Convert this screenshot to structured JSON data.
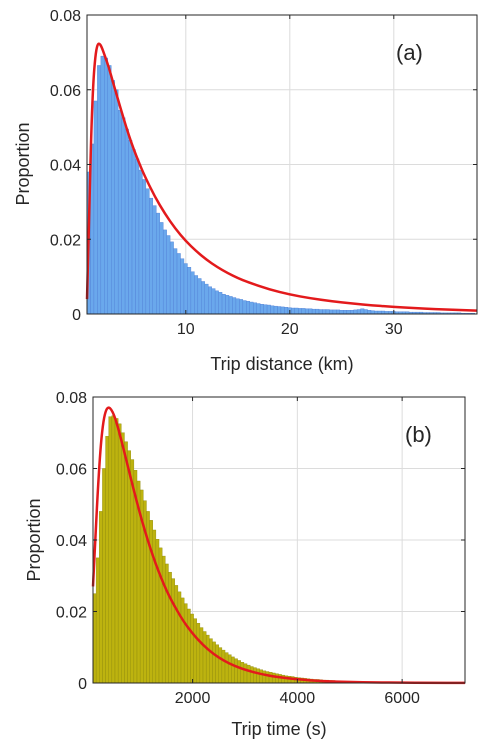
{
  "chart_data": [
    {
      "type": "bar",
      "panel_label": "(a)",
      "xlabel": "Trip distance (km)",
      "ylabel": "Proportion",
      "xlim": [
        0.5,
        38
      ],
      "ylim": [
        0,
        0.08
      ],
      "xticks": [
        10,
        20,
        30
      ],
      "xtick_labels": [
        "10",
        "20",
        "30"
      ],
      "yticks": [
        0,
        0.02,
        0.04,
        0.06,
        0.08
      ],
      "ytick_labels": [
        "0",
        "0.02",
        "0.04",
        "0.06",
        "0.08"
      ],
      "grid": true,
      "bar_color": "#6aa8ec",
      "bar_edge": "#4f7fd6",
      "curve_color": "#e31a1c",
      "bins_start": 0.5,
      "bin_width": 0.333,
      "histogram": [
        0.038,
        0.0455,
        0.057,
        0.0665,
        0.069,
        0.0685,
        0.0665,
        0.0625,
        0.06,
        0.0545,
        0.0525,
        0.0495,
        0.0465,
        0.044,
        0.0415,
        0.0385,
        0.036,
        0.0335,
        0.031,
        0.029,
        0.027,
        0.0245,
        0.0225,
        0.021,
        0.0193,
        0.0175,
        0.0162,
        0.0148,
        0.0135,
        0.0125,
        0.0113,
        0.0103,
        0.0095,
        0.0087,
        0.008,
        0.0073,
        0.0068,
        0.0062,
        0.0058,
        0.0053,
        0.005,
        0.0047,
        0.0044,
        0.0041,
        0.0039,
        0.0036,
        0.0034,
        0.0032,
        0.003,
        0.0028,
        0.0026,
        0.0025,
        0.0024,
        0.0022,
        0.0021,
        0.002,
        0.0019,
        0.0018,
        0.0017,
        0.0016,
        0.0016,
        0.0015,
        0.0015,
        0.0014,
        0.0014,
        0.0013,
        0.0013,
        0.0012,
        0.0012,
        0.0012,
        0.0011,
        0.0011,
        0.0011,
        0.001,
        0.001,
        0.001,
        0.001,
        0.0011,
        0.0012,
        0.0014,
        0.0012,
        0.001,
        0.0009,
        0.0008,
        0.0008,
        0.0008,
        0.0007,
        0.0007,
        0.0007,
        0.0006,
        0.0006,
        0.0006,
        0.0006,
        0.0005,
        0.0005,
        0.0005,
        0.0005,
        0.0004,
        0.0004,
        0.0004,
        0.0004,
        0.0004,
        0.0003,
        0.0003,
        0.0003,
        0.0003,
        0.0003,
        0.0003,
        0.0002,
        0.0002,
        0.0002,
        0.0002
      ],
      "curve": {
        "x": [
          0.5,
          0.7,
          0.9,
          1.1,
          1.3,
          1.5,
          1.7,
          1.9,
          2.2,
          2.6,
          3.0,
          3.5,
          4.0,
          4.5,
          5.0,
          5.5,
          6.0,
          7.0,
          8.0,
          9.0,
          10.0,
          11.0,
          12.0,
          13.0,
          14.0,
          15.0,
          16.0,
          18.0,
          20.0,
          22.0,
          24.0,
          26.0,
          28.0,
          30.0,
          32.0,
          34.0,
          36.0,
          38.0
        ],
        "y": [
          0.004,
          0.025,
          0.048,
          0.062,
          0.069,
          0.0722,
          0.0724,
          0.0715,
          0.0692,
          0.066,
          0.062,
          0.0572,
          0.0525,
          0.048,
          0.044,
          0.0405,
          0.0372,
          0.0315,
          0.0268,
          0.0228,
          0.0195,
          0.0168,
          0.0145,
          0.0126,
          0.011,
          0.0096,
          0.0085,
          0.0066,
          0.0052,
          0.0042,
          0.0034,
          0.0028,
          0.0023,
          0.0019,
          0.0016,
          0.0013,
          0.0011,
          0.0009
        ]
      }
    },
    {
      "type": "bar",
      "panel_label": "(b)",
      "xlabel": "Trip time (s)",
      "ylabel": "Proportion",
      "xlim": [
        100,
        7200
      ],
      "ylim": [
        0,
        0.08
      ],
      "xticks": [
        2000,
        4000,
        6000
      ],
      "xtick_labels": [
        "2000",
        "4000",
        "6000"
      ],
      "yticks": [
        0,
        0.02,
        0.04,
        0.06,
        0.08
      ],
      "ytick_labels": [
        "0",
        "0.02",
        "0.04",
        "0.06",
        "0.08"
      ],
      "grid": true,
      "bar_color": "#bdb30f",
      "bar_edge": "#8f8a0b",
      "curve_color": "#e31a1c",
      "bins_start": 100,
      "bin_width": 60,
      "histogram": [
        0.025,
        0.035,
        0.048,
        0.06,
        0.069,
        0.0745,
        0.0748,
        0.074,
        0.0725,
        0.07,
        0.0675,
        0.065,
        0.0625,
        0.0595,
        0.0565,
        0.054,
        0.051,
        0.048,
        0.0455,
        0.0428,
        0.0402,
        0.0378,
        0.0355,
        0.0333,
        0.031,
        0.0292,
        0.0273,
        0.0255,
        0.0238,
        0.0222,
        0.0207,
        0.0193,
        0.018,
        0.0167,
        0.0155,
        0.0144,
        0.0134,
        0.0124,
        0.0115,
        0.0107,
        0.0099,
        0.0092,
        0.0085,
        0.0079,
        0.0073,
        0.0068,
        0.0063,
        0.0058,
        0.0054,
        0.005,
        0.0046,
        0.0043,
        0.004,
        0.0037,
        0.0034,
        0.0032,
        0.003,
        0.0028,
        0.0026,
        0.0024,
        0.0022,
        0.002,
        0.0019,
        0.0018,
        0.0016,
        0.0015,
        0.0014,
        0.0013,
        0.0012,
        0.0011,
        0.001,
        0.001,
        0.0009,
        0.0008,
        0.0008,
        0.0007,
        0.0007,
        0.0006,
        0.0006,
        0.0005,
        0.0005,
        0.0005,
        0.0004,
        0.0004,
        0.0004,
        0.0003,
        0.0003,
        0.0003,
        0.0003,
        0.0003,
        0.0002,
        0.0002,
        0.0002,
        0.0002,
        0.0002,
        0.0002,
        0.0002,
        0.0001,
        0.0001,
        0.0001,
        0.0001,
        0.0001,
        0.0001,
        0.0001,
        0.0001,
        0.0001,
        0.0001,
        0.0001,
        0.0001,
        0.0001,
        0.0001,
        0.0001,
        0.0001,
        0.0001,
        0.0001,
        0.0001,
        0.0001,
        0.0001
      ],
      "curve": {
        "x": [
          100,
          150,
          200,
          250,
          300,
          350,
          400,
          450,
          500,
          550,
          600,
          700,
          800,
          900,
          1000,
          1100,
          1200,
          1300,
          1400,
          1500,
          1600,
          1800,
          2000,
          2200,
          2400,
          2600,
          2800,
          3000,
          3300,
          3600,
          4000,
          4500,
          5000,
          5500,
          6000,
          6500,
          7200
        ],
        "y": [
          0.027,
          0.042,
          0.056,
          0.067,
          0.0735,
          0.0765,
          0.0772,
          0.0765,
          0.075,
          0.0728,
          0.0702,
          0.0645,
          0.0585,
          0.0527,
          0.0472,
          0.0421,
          0.0374,
          0.0332,
          0.0294,
          0.026,
          0.023,
          0.0178,
          0.0138,
          0.0106,
          0.0081,
          0.0062,
          0.0048,
          0.0037,
          0.0025,
          0.0017,
          0.001,
          0.0005,
          0.0003,
          0.00015,
          0.0001,
          5e-05,
          2e-05
        ]
      }
    }
  ]
}
